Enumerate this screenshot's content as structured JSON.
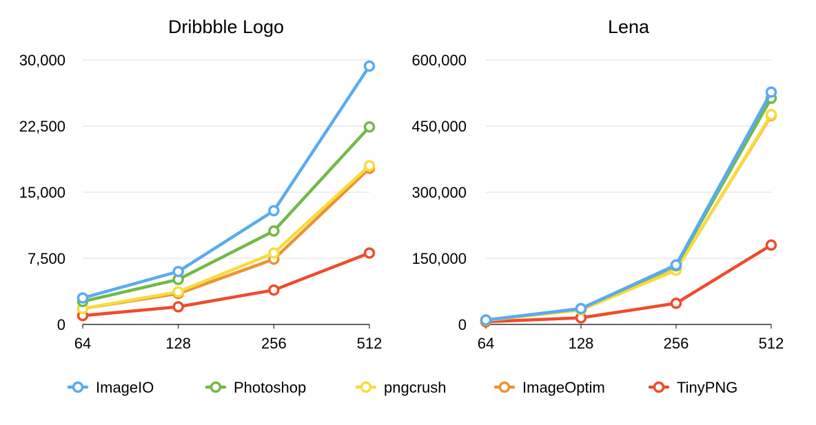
{
  "chart_data": [
    {
      "type": "line",
      "title": "Dribbble Logo",
      "categories": [
        "64",
        "128",
        "256",
        "512"
      ],
      "y_ticks": [
        "0",
        "7,500",
        "15,000",
        "22,500",
        "30,000"
      ],
      "ylim": [
        0,
        30000
      ],
      "grid": true,
      "series": [
        {
          "name": "ImageIO",
          "values": [
            3000,
            6000,
            12900,
            29300
          ]
        },
        {
          "name": "Photoshop",
          "values": [
            2600,
            5100,
            10600,
            22400
          ]
        },
        {
          "name": "pngcrush",
          "values": [
            1800,
            3700,
            8100,
            18000
          ]
        },
        {
          "name": "ImageOptim",
          "values": [
            1800,
            3500,
            7400,
            17700
          ]
        },
        {
          "name": "TinyPNG",
          "values": [
            1000,
            2000,
            3900,
            8100
          ]
        }
      ]
    },
    {
      "type": "line",
      "title": "Lena",
      "categories": [
        "64",
        "128",
        "256",
        "512"
      ],
      "y_ticks": [
        "0",
        "150,000",
        "300,000",
        "450,000",
        "600,000"
      ],
      "ylim": [
        0,
        600000
      ],
      "grid": true,
      "series": [
        {
          "name": "ImageIO",
          "values": [
            10000,
            36000,
            135000,
            527000
          ]
        },
        {
          "name": "Photoshop",
          "values": [
            10000,
            36000,
            133000,
            513000
          ]
        },
        {
          "name": "pngcrush",
          "values": [
            9000,
            33000,
            123000,
            476000
          ]
        },
        {
          "name": "ImageOptim",
          "values": [
            9000,
            33000,
            124000,
            474000
          ]
        },
        {
          "name": "TinyPNG",
          "values": [
            6000,
            15000,
            48000,
            180000
          ]
        }
      ]
    }
  ],
  "legend": {
    "placement": "bottom",
    "items": [
      {
        "label": "ImageIO",
        "color": "#5aaaf2"
      },
      {
        "label": "Photoshop",
        "color": "#72b947"
      },
      {
        "label": "pngcrush",
        "color": "#f7dc3c"
      },
      {
        "label": "ImageOptim",
        "color": "#ec9332"
      },
      {
        "label": "TinyPNG",
        "color": "#ef4b2c"
      }
    ]
  }
}
